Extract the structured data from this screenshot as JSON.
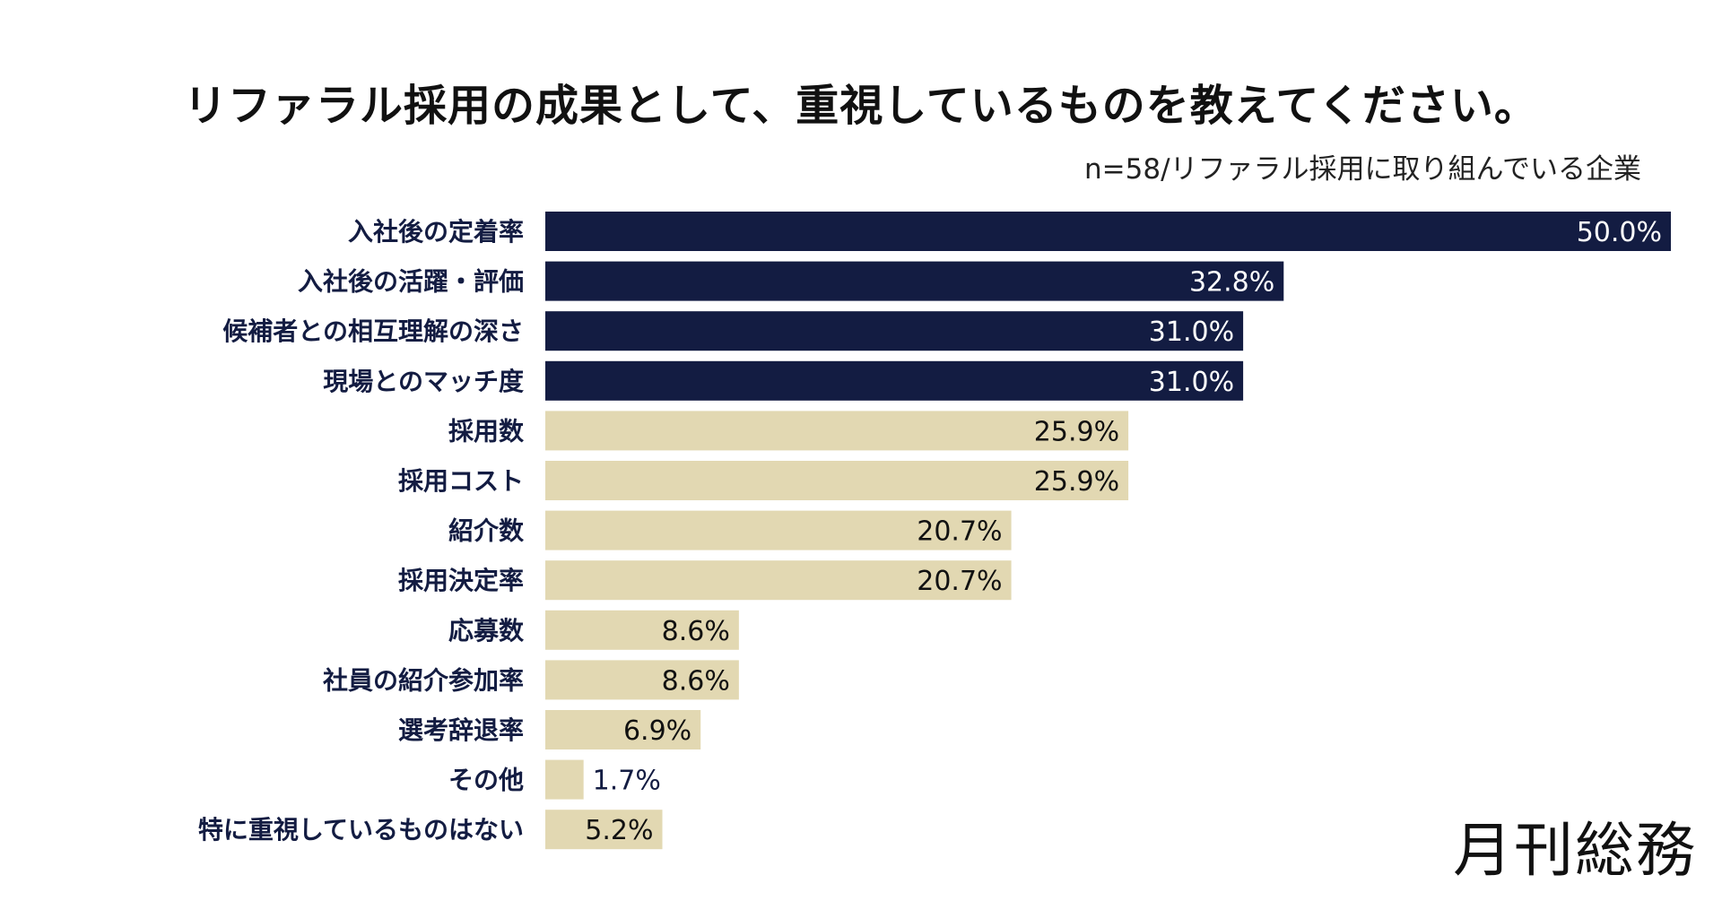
{
  "header": {
    "title": "リファラル採用の成果として、重視しているものを教えてください。",
    "subtitle": "n=58/リファラル採用に取り組んでいる企業"
  },
  "logo": {
    "text": "月刊総務"
  },
  "colors": {
    "highlight": "#131c42",
    "normal": "#e2d8b2",
    "label_text": "#131c42",
    "value_on_dark": "#ffffff",
    "value_on_light": "#111111"
  },
  "chart_data": {
    "type": "bar",
    "orientation": "horizontal",
    "categories": [
      "入社後の定着率",
      "入社後の活躍・評価",
      "候補者との相互理解の深さ",
      "現場とのマッチ度",
      "採用数",
      "採用コスト",
      "紹介数",
      "採用決定率",
      "応募数",
      "社員の紹介参加率",
      "選考辞退率",
      "その他",
      "特に重視しているものはない"
    ],
    "values": [
      50.0,
      32.8,
      31.0,
      31.0,
      25.9,
      25.9,
      20.7,
      20.7,
      8.6,
      8.6,
      6.9,
      1.7,
      5.2
    ],
    "value_labels": [
      "50.0%",
      "32.8%",
      "31.0%",
      "31.0%",
      "25.9%",
      "25.9%",
      "20.7%",
      "20.7%",
      "8.6%",
      "8.6%",
      "6.9%",
      "1.7%",
      "5.2%"
    ],
    "highlighted": [
      true,
      true,
      true,
      true,
      false,
      false,
      false,
      false,
      false,
      false,
      false,
      false,
      false
    ],
    "unit": "%",
    "xlim": [
      0,
      50
    ],
    "grid": false,
    "legend": "none"
  }
}
